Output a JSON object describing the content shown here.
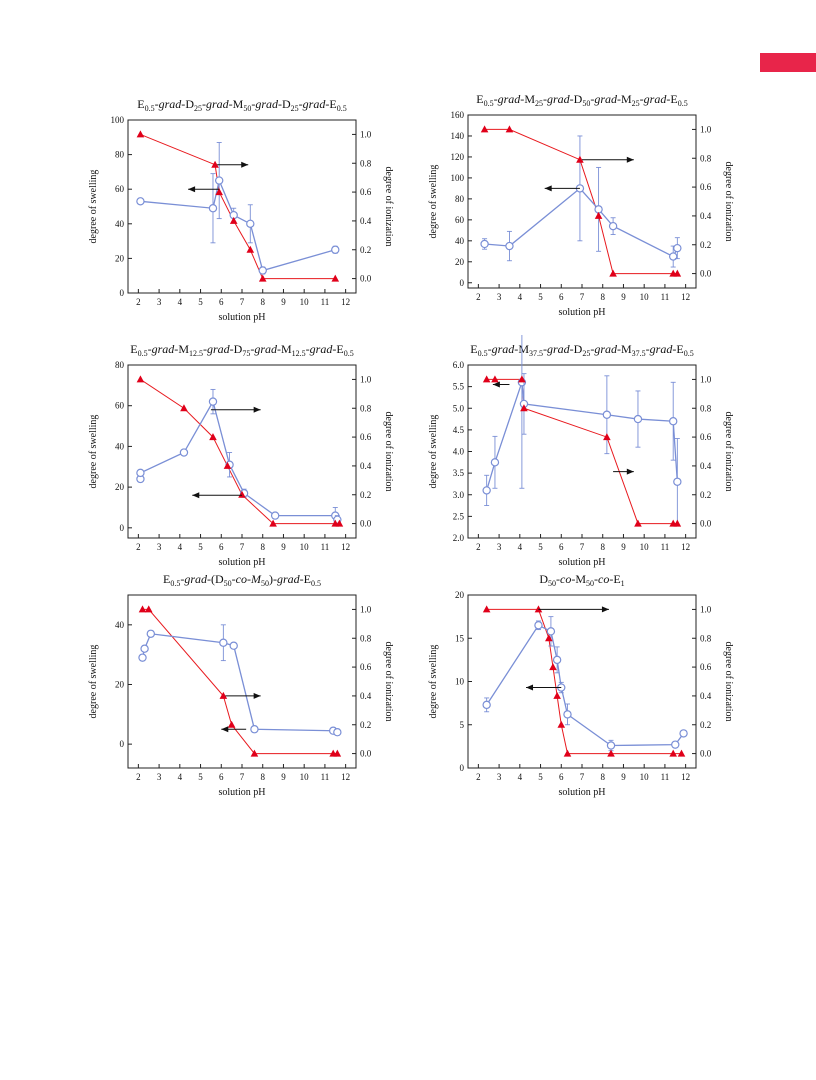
{
  "accent_tab_color": "#e8254a",
  "colors": {
    "swelling": "#7a8fd6",
    "ionization": "#e8191e",
    "ionization_marker": "#e0001a"
  },
  "chart_data": [
    {
      "type": "line",
      "title": "E0.5-grad-D25-grad-M50-grad-D25-grad-E0.5",
      "title_parts": [
        {
          "t": "E",
          "s": "n"
        },
        {
          "t": "0.5",
          "s": "b"
        },
        {
          "t": "-grad-",
          "s": "i"
        },
        {
          "t": "D",
          "s": "n"
        },
        {
          "t": "25",
          "s": "b"
        },
        {
          "t": "-grad-",
          "s": "i"
        },
        {
          "t": "M",
          "s": "n"
        },
        {
          "t": "50",
          "s": "b"
        },
        {
          "t": "-grad-",
          "s": "i"
        },
        {
          "t": "D",
          "s": "n"
        },
        {
          "t": "25",
          "s": "b"
        },
        {
          "t": "-grad-",
          "s": "i"
        },
        {
          "t": "E",
          "s": "n"
        },
        {
          "t": "0.5",
          "s": "b"
        }
      ],
      "xlabel": "solution pH",
      "ylabel": "degree of swelling",
      "y2label": "degree of ionization",
      "xlim": [
        1.5,
        12.5
      ],
      "xticks": [
        "2",
        "3",
        "4",
        "5",
        "6",
        "7",
        "8",
        "9",
        "10",
        "11",
        "12"
      ],
      "ylim": [
        0,
        100
      ],
      "yticks": [
        "0",
        "20",
        "40",
        "60",
        "80",
        "100"
      ],
      "y2lim": [
        -0.1,
        1.1
      ],
      "y2ticks": [
        "0.0",
        "0.2",
        "0.4",
        "0.6",
        "0.8",
        "1.0"
      ],
      "series": [
        {
          "axis": "left",
          "x": [
            2.1,
            5.6,
            5.9,
            6.6,
            7.4,
            8.0,
            11.5
          ],
          "y": [
            53,
            49,
            65,
            45,
            40,
            13,
            25
          ],
          "err": [
            1,
            20,
            22,
            4,
            11,
            2,
            2
          ]
        },
        {
          "axis": "right",
          "x": [
            2.1,
            5.7,
            5.9,
            6.6,
            7.4,
            8.0,
            11.5
          ],
          "y": [
            1.0,
            0.79,
            0.6,
            0.4,
            0.2,
            0.0,
            0.0
          ]
        }
      ],
      "arrows": [
        {
          "dir": "right",
          "x1": 5.8,
          "x2": 7.3,
          "y": 0.79,
          "axis": "right"
        },
        {
          "dir": "left",
          "x1": 5.9,
          "x2": 4.4,
          "y": 60,
          "axis": "left"
        }
      ]
    },
    {
      "type": "line",
      "title": "E0.5-grad-M25-grad-D50-grad-M25-grad-E0.5",
      "title_parts": [
        {
          "t": "E",
          "s": "n"
        },
        {
          "t": "0.5",
          "s": "b"
        },
        {
          "t": "-grad-",
          "s": "i"
        },
        {
          "t": "M",
          "s": "n"
        },
        {
          "t": "25",
          "s": "b"
        },
        {
          "t": "-grad-",
          "s": "i"
        },
        {
          "t": "D",
          "s": "n"
        },
        {
          "t": "50",
          "s": "b"
        },
        {
          "t": "-grad-",
          "s": "i"
        },
        {
          "t": "M",
          "s": "n"
        },
        {
          "t": "25",
          "s": "b"
        },
        {
          "t": "-grad-",
          "s": "i"
        },
        {
          "t": "E",
          "s": "n"
        },
        {
          "t": "0.5",
          "s": "b"
        }
      ],
      "xlabel": "solution pH",
      "ylabel": "degree of swelling",
      "y2label": "degree of ionization",
      "xlim": [
        1.5,
        12.5
      ],
      "xticks": [
        "2",
        "3",
        "4",
        "5",
        "6",
        "7",
        "8",
        "9",
        "10",
        "11",
        "12"
      ],
      "ylim": [
        -5,
        160
      ],
      "yticks": [
        "0",
        "20",
        "40",
        "60",
        "80",
        "100",
        "120",
        "140",
        "160"
      ],
      "y2lim": [
        -0.1,
        1.1
      ],
      "y2ticks": [
        "0.0",
        "0.2",
        "0.4",
        "0.6",
        "0.8",
        "1.0"
      ],
      "series": [
        {
          "axis": "left",
          "x": [
            2.3,
            3.5,
            6.9,
            7.8,
            8.5,
            11.4,
            11.6
          ],
          "y": [
            37,
            35,
            90,
            70,
            54,
            25,
            33
          ],
          "err": [
            5,
            14,
            50,
            40,
            8,
            10,
            10
          ]
        },
        {
          "axis": "right",
          "x": [
            2.3,
            3.5,
            6.9,
            7.8,
            8.5,
            11.4,
            11.6
          ],
          "y": [
            1.0,
            1.0,
            0.79,
            0.4,
            0.0,
            0.0,
            0.0
          ]
        }
      ],
      "arrows": [
        {
          "dir": "right",
          "x1": 7.0,
          "x2": 9.5,
          "y": 0.79,
          "axis": "right"
        },
        {
          "dir": "left",
          "x1": 6.9,
          "x2": 5.2,
          "y": 90,
          "axis": "left"
        }
      ]
    },
    {
      "type": "line",
      "title": "E0.5-grad-M12.5-grad-D75-grad-M12.5-grad-E0.5",
      "title_parts": [
        {
          "t": "E",
          "s": "n"
        },
        {
          "t": "0.5",
          "s": "b"
        },
        {
          "t": "-grad-",
          "s": "i"
        },
        {
          "t": "M",
          "s": "n"
        },
        {
          "t": "12.5",
          "s": "b"
        },
        {
          "t": "-grad-",
          "s": "i"
        },
        {
          "t": "D",
          "s": "n"
        },
        {
          "t": "75",
          "s": "b"
        },
        {
          "t": "-grad-",
          "s": "i"
        },
        {
          "t": "M",
          "s": "n"
        },
        {
          "t": "12.5",
          "s": "b"
        },
        {
          "t": "-grad-",
          "s": "i"
        },
        {
          "t": "E",
          "s": "n"
        },
        {
          "t": "0.5",
          "s": "b"
        }
      ],
      "xlabel": "solution pH",
      "ylabel": "degree of swelling",
      "y2label": "degree of ionization",
      "xlim": [
        1.5,
        12.5
      ],
      "xticks": [
        "2",
        "3",
        "4",
        "5",
        "6",
        "7",
        "8",
        "9",
        "10",
        "11",
        "12"
      ],
      "ylim": [
        -5,
        80
      ],
      "yticks": [
        "0",
        "20",
        "40",
        "60",
        "80"
      ],
      "y2lim": [
        -0.1,
        1.1
      ],
      "y2ticks": [
        "0.0",
        "0.2",
        "0.4",
        "0.6",
        "0.8",
        "1.0"
      ],
      "series": [
        {
          "axis": "left",
          "x": [
            2.1,
            2.1,
            4.2,
            5.6,
            6.4,
            7.1,
            8.6,
            11.5,
            11.6
          ],
          "y": [
            24,
            27,
            37,
            62,
            31,
            17,
            6,
            6,
            4
          ],
          "err": [
            1,
            1,
            1,
            6,
            6,
            2,
            1,
            4,
            2
          ]
        },
        {
          "axis": "right",
          "x": [
            2.1,
            4.2,
            5.6,
            6.3,
            7.0,
            8.5,
            11.5,
            11.7
          ],
          "y": [
            1.0,
            0.8,
            0.6,
            0.4,
            0.2,
            0.0,
            0.0,
            0.0
          ]
        }
      ],
      "arrows": [
        {
          "dir": "right",
          "x1": 5.5,
          "x2": 7.9,
          "y": 0.79,
          "axis": "right"
        },
        {
          "dir": "left",
          "x1": 7.0,
          "x2": 4.6,
          "y": 16,
          "axis": "left"
        }
      ]
    },
    {
      "type": "line",
      "title": "E0.5-grad-M37.5-grad-D25-grad-M37.5-grad-E0.5",
      "title_parts": [
        {
          "t": "E",
          "s": "n"
        },
        {
          "t": "0.5",
          "s": "b"
        },
        {
          "t": "-grad-",
          "s": "i"
        },
        {
          "t": "M",
          "s": "n"
        },
        {
          "t": "37.5",
          "s": "b"
        },
        {
          "t": "-grad-",
          "s": "i"
        },
        {
          "t": "D",
          "s": "n"
        },
        {
          "t": "25",
          "s": "b"
        },
        {
          "t": "-grad-",
          "s": "i"
        },
        {
          "t": "M",
          "s": "n"
        },
        {
          "t": "37.5",
          "s": "b"
        },
        {
          "t": "-grad-",
          "s": "i"
        },
        {
          "t": "E",
          "s": "n"
        },
        {
          "t": "0.5",
          "s": "b"
        }
      ],
      "xlabel": "solution pH",
      "ylabel": "degree of swelling",
      "y2label": "degree of ionization",
      "xlim": [
        1.5,
        12.5
      ],
      "xticks": [
        "2",
        "3",
        "4",
        "5",
        "6",
        "7",
        "8",
        "9",
        "10",
        "11",
        "12"
      ],
      "ylim": [
        2.0,
        6.0
      ],
      "yticks": [
        "2.0",
        "2.5",
        "3.0",
        "3.5",
        "4.0",
        "4.5",
        "5.0",
        "5.5",
        "6.0"
      ],
      "y2lim": [
        -0.1,
        1.1
      ],
      "y2ticks": [
        "0.0",
        "0.2",
        "0.4",
        "0.6",
        "0.8",
        "1.0"
      ],
      "series": [
        {
          "axis": "left",
          "x": [
            2.4,
            2.8,
            4.1,
            4.2,
            8.2,
            9.7,
            11.4,
            11.6
          ],
          "y": [
            3.1,
            3.75,
            5.6,
            5.1,
            4.85,
            4.75,
            4.7,
            3.3
          ],
          "err": [
            0.35,
            0.6,
            2.45,
            0.7,
            0.9,
            0.65,
            0.9,
            1.0
          ]
        },
        {
          "axis": "right",
          "x": [
            2.4,
            2.8,
            4.1,
            4.2,
            8.2,
            9.7,
            11.4,
            11.6
          ],
          "y": [
            1.0,
            1.0,
            1.0,
            0.8,
            0.6,
            0.0,
            0.0,
            0.0
          ]
        }
      ],
      "arrows": [
        {
          "dir": "left",
          "x1": 3.5,
          "x2": 2.7,
          "y": 5.55,
          "axis": "left"
        },
        {
          "dir": "right",
          "x1": 8.5,
          "x2": 9.5,
          "y": 0.36,
          "axis": "right"
        }
      ]
    },
    {
      "type": "line",
      "title": "E0.5-grad-(D50-co-M50)-grad-E0.5",
      "title_parts": [
        {
          "t": "E",
          "s": "n"
        },
        {
          "t": "0.5",
          "s": "b"
        },
        {
          "t": "-grad-",
          "s": "i"
        },
        {
          "t": "(D",
          "s": "n"
        },
        {
          "t": "50",
          "s": "b"
        },
        {
          "t": "-co-M",
          "s": "i"
        },
        {
          "t": "50",
          "s": "b"
        },
        {
          "t": ")-",
          "s": "n"
        },
        {
          "t": "grad",
          "s": "i"
        },
        {
          "t": "-E",
          "s": "n"
        },
        {
          "t": "0.5",
          "s": "b"
        }
      ],
      "xlabel": "solution pH",
      "ylabel": "degree of swelling",
      "y2label": "degree of ionization",
      "xlim": [
        1.5,
        12.5
      ],
      "xticks": [
        "2",
        "3",
        "4",
        "5",
        "6",
        "7",
        "8",
        "9",
        "10",
        "11",
        "12"
      ],
      "ylim": [
        -8,
        50
      ],
      "yticks": [
        "0",
        "20",
        "40"
      ],
      "y2lim": [
        -0.1,
        1.1
      ],
      "y2ticks": [
        "0.0",
        "0.2",
        "0.4",
        "0.6",
        "0.8",
        "1.0"
      ],
      "series": [
        {
          "axis": "left",
          "x": [
            2.2,
            2.3,
            2.6,
            6.1,
            6.6,
            7.6,
            11.4,
            11.6
          ],
          "y": [
            29,
            32,
            37,
            34,
            33,
            5,
            4.5,
            4
          ],
          "err": [
            1,
            1,
            1,
            6,
            1,
            1,
            1,
            1
          ]
        },
        {
          "axis": "right",
          "x": [
            2.2,
            2.5,
            6.1,
            6.5,
            7.6,
            11.4,
            11.6
          ],
          "y": [
            1.0,
            1.0,
            0.4,
            0.2,
            0.0,
            0.0,
            0.0
          ]
        }
      ],
      "arrows": [
        {
          "dir": "right",
          "x1": 6.2,
          "x2": 7.9,
          "y": 0.4,
          "axis": "right"
        },
        {
          "dir": "left",
          "x1": 7.2,
          "x2": 6.0,
          "y": 5,
          "axis": "left"
        }
      ]
    },
    {
      "type": "line",
      "title": "D50-co-M50-co-E1",
      "title_parts": [
        {
          "t": "D",
          "s": "n"
        },
        {
          "t": "50",
          "s": "b"
        },
        {
          "t": "-co-",
          "s": "i"
        },
        {
          "t": "M",
          "s": "n"
        },
        {
          "t": "50",
          "s": "b"
        },
        {
          "t": "-co-",
          "s": "i"
        },
        {
          "t": "E",
          "s": "n"
        },
        {
          "t": "1",
          "s": "b"
        }
      ],
      "xlabel": "solution pH",
      "ylabel": "degree of swelling",
      "y2label": "degree of ionization",
      "xlim": [
        1.5,
        12.5
      ],
      "xticks": [
        "2",
        "3",
        "4",
        "5",
        "6",
        "7",
        "8",
        "9",
        "10",
        "11",
        "12"
      ],
      "ylim": [
        0,
        20
      ],
      "yticks": [
        "0",
        "5",
        "10",
        "15",
        "20"
      ],
      "y2lim": [
        -0.1,
        1.1
      ],
      "y2ticks": [
        "0.0",
        "0.2",
        "0.4",
        "0.6",
        "0.8",
        "1.0"
      ],
      "series": [
        {
          "axis": "left",
          "x": [
            2.4,
            4.9,
            5.5,
            5.8,
            6.0,
            6.3,
            8.4,
            11.5,
            11.9
          ],
          "y": [
            7.3,
            16.5,
            15.8,
            12.5,
            9.3,
            6.2,
            2.6,
            2.7,
            4
          ],
          "err": [
            0.8,
            0.5,
            1.7,
            1.5,
            0.6,
            1.2,
            0.6,
            0.3,
            0.3
          ]
        },
        {
          "axis": "right",
          "x": [
            2.4,
            4.9,
            5.4,
            5.6,
            5.8,
            6.0,
            6.3,
            8.4,
            11.4,
            11.8
          ],
          "y": [
            1.0,
            1.0,
            0.8,
            0.6,
            0.4,
            0.2,
            0.0,
            0.0,
            0.0,
            0.0
          ]
        }
      ],
      "arrows": [
        {
          "dir": "right",
          "x1": 4.9,
          "x2": 8.3,
          "y": 1.0,
          "axis": "right"
        },
        {
          "dir": "left",
          "x1": 6.0,
          "x2": 4.3,
          "y": 9.3,
          "axis": "left"
        }
      ]
    }
  ]
}
